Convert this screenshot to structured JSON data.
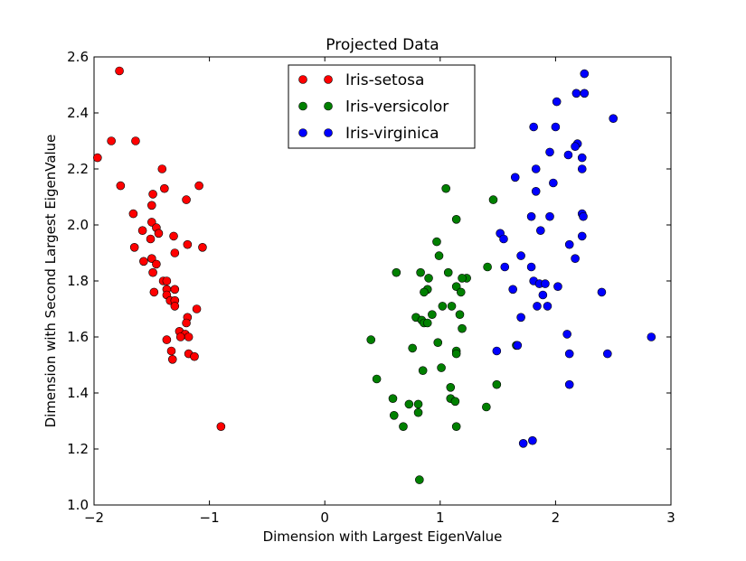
{
  "chart_data": {
    "type": "scatter",
    "title": "Projected Data",
    "xlabel": "Dimension with Largest EigenValue",
    "ylabel": "Dimension with Second Largest EigenValue",
    "xlim": [
      -2,
      3
    ],
    "ylim": [
      1.0,
      2.6
    ],
    "xticks": [
      -2,
      -1,
      0,
      1,
      2,
      3
    ],
    "xtick_labels": [
      "−2",
      "−1",
      "0",
      "1",
      "2",
      "3"
    ],
    "yticks": [
      1.0,
      1.2,
      1.4,
      1.6,
      1.8,
      2.0,
      2.2,
      2.4,
      2.6
    ],
    "ytick_labels": [
      "1.0",
      "1.2",
      "1.4",
      "1.6",
      "1.8",
      "2.0",
      "2.2",
      "2.4",
      "2.6"
    ],
    "grid": false,
    "legend_position": "top-center",
    "series": [
      {
        "name": "Iris-setosa",
        "color": "#ff0000",
        "points": [
          [
            -1.97,
            2.24
          ],
          [
            -1.78,
            2.55
          ],
          [
            -1.85,
            2.3
          ],
          [
            -1.77,
            2.14
          ],
          [
            -1.64,
            2.3
          ],
          [
            -1.66,
            2.04
          ],
          [
            -1.41,
            2.2
          ],
          [
            -1.39,
            2.13
          ],
          [
            -1.49,
            2.11
          ],
          [
            -1.09,
            2.14
          ],
          [
            -1.2,
            2.09
          ],
          [
            -1.5,
            2.07
          ],
          [
            -1.58,
            1.98
          ],
          [
            -1.5,
            2.01
          ],
          [
            -1.46,
            1.99
          ],
          [
            -1.44,
            1.97
          ],
          [
            -1.51,
            1.95
          ],
          [
            -1.31,
            1.96
          ],
          [
            -1.65,
            1.92
          ],
          [
            -1.19,
            1.93
          ],
          [
            -1.06,
            1.92
          ],
          [
            -1.3,
            1.9
          ],
          [
            -1.57,
            1.87
          ],
          [
            -1.5,
            1.88
          ],
          [
            -1.46,
            1.86
          ],
          [
            -1.49,
            1.83
          ],
          [
            -1.4,
            1.8
          ],
          [
            -1.37,
            1.8
          ],
          [
            -1.37,
            1.77
          ],
          [
            -1.48,
            1.76
          ],
          [
            -1.37,
            1.75
          ],
          [
            -1.3,
            1.77
          ],
          [
            -1.34,
            1.73
          ],
          [
            -1.3,
            1.73
          ],
          [
            -1.3,
            1.71
          ],
          [
            -1.11,
            1.7
          ],
          [
            -1.19,
            1.67
          ],
          [
            -1.2,
            1.65
          ],
          [
            -1.26,
            1.62
          ],
          [
            -1.21,
            1.61
          ],
          [
            -1.25,
            1.6
          ],
          [
            -1.18,
            1.6
          ],
          [
            -1.37,
            1.59
          ],
          [
            -1.33,
            1.55
          ],
          [
            -1.18,
            1.54
          ],
          [
            -1.13,
            1.53
          ],
          [
            -1.32,
            1.52
          ],
          [
            -0.9,
            1.28
          ]
        ]
      },
      {
        "name": "Iris-versicolor",
        "color": "#008000",
        "points": [
          [
            1.05,
            2.13
          ],
          [
            1.46,
            2.09
          ],
          [
            1.14,
            2.02
          ],
          [
            0.97,
            1.94
          ],
          [
            0.99,
            1.89
          ],
          [
            0.62,
            1.83
          ],
          [
            0.83,
            1.83
          ],
          [
            1.07,
            1.83
          ],
          [
            1.41,
            1.85
          ],
          [
            1.23,
            1.81
          ],
          [
            1.19,
            1.81
          ],
          [
            0.9,
            1.81
          ],
          [
            1.14,
            1.78
          ],
          [
            0.89,
            1.77
          ],
          [
            0.86,
            1.76
          ],
          [
            1.18,
            1.76
          ],
          [
            1.02,
            1.71
          ],
          [
            1.1,
            1.71
          ],
          [
            0.93,
            1.68
          ],
          [
            1.17,
            1.68
          ],
          [
            0.79,
            1.67
          ],
          [
            0.84,
            1.66
          ],
          [
            0.86,
            1.65
          ],
          [
            0.89,
            1.65
          ],
          [
            1.19,
            1.63
          ],
          [
            0.4,
            1.59
          ],
          [
            0.98,
            1.58
          ],
          [
            0.76,
            1.56
          ],
          [
            1.14,
            1.55
          ],
          [
            1.14,
            1.54
          ],
          [
            1.66,
            1.57
          ],
          [
            1.01,
            1.49
          ],
          [
            0.85,
            1.48
          ],
          [
            0.45,
            1.45
          ],
          [
            1.49,
            1.43
          ],
          [
            1.09,
            1.42
          ],
          [
            1.09,
            1.38
          ],
          [
            1.13,
            1.37
          ],
          [
            0.59,
            1.38
          ],
          [
            0.81,
            1.36
          ],
          [
            0.73,
            1.36
          ],
          [
            1.4,
            1.35
          ],
          [
            0.81,
            1.33
          ],
          [
            0.6,
            1.32
          ],
          [
            0.68,
            1.28
          ],
          [
            1.14,
            1.28
          ],
          [
            0.82,
            1.09
          ]
        ]
      },
      {
        "name": "Iris-virginica",
        "color": "#0000ff",
        "points": [
          [
            2.25,
            2.54
          ],
          [
            2.18,
            2.47
          ],
          [
            2.25,
            2.47
          ],
          [
            2.01,
            2.44
          ],
          [
            2.5,
            2.38
          ],
          [
            1.81,
            2.35
          ],
          [
            2.0,
            2.35
          ],
          [
            2.19,
            2.29
          ],
          [
            2.17,
            2.28
          ],
          [
            1.95,
            2.26
          ],
          [
            2.11,
            2.25
          ],
          [
            2.23,
            2.24
          ],
          [
            1.83,
            2.2
          ],
          [
            2.23,
            2.2
          ],
          [
            1.65,
            2.17
          ],
          [
            1.98,
            2.15
          ],
          [
            1.83,
            2.12
          ],
          [
            2.23,
            2.04
          ],
          [
            2.24,
            2.03
          ],
          [
            1.79,
            2.03
          ],
          [
            1.95,
            2.03
          ],
          [
            1.87,
            1.98
          ],
          [
            1.52,
            1.97
          ],
          [
            2.23,
            1.96
          ],
          [
            1.55,
            1.95
          ],
          [
            2.12,
            1.93
          ],
          [
            1.7,
            1.89
          ],
          [
            2.17,
            1.88
          ],
          [
            1.56,
            1.85
          ],
          [
            1.79,
            1.85
          ],
          [
            1.81,
            1.8
          ],
          [
            1.86,
            1.79
          ],
          [
            1.91,
            1.79
          ],
          [
            2.02,
            1.78
          ],
          [
            1.63,
            1.77
          ],
          [
            2.4,
            1.76
          ],
          [
            1.89,
            1.75
          ],
          [
            1.84,
            1.71
          ],
          [
            1.93,
            1.71
          ],
          [
            1.7,
            1.67
          ],
          [
            2.1,
            1.61
          ],
          [
            2.83,
            1.6
          ],
          [
            1.67,
            1.57
          ],
          [
            1.49,
            1.55
          ],
          [
            2.12,
            1.54
          ],
          [
            2.45,
            1.54
          ],
          [
            2.12,
            1.43
          ],
          [
            1.72,
            1.22
          ],
          [
            1.8,
            1.23
          ]
        ]
      }
    ]
  }
}
